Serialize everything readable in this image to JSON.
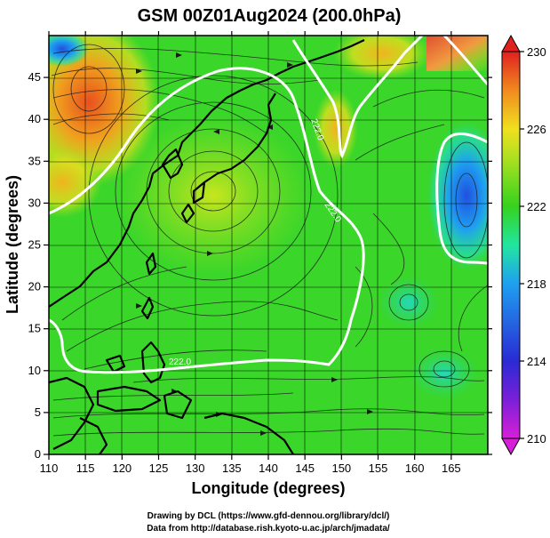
{
  "title": "GSM 00Z01Aug2024 (200.0hPa)",
  "xlabel": "Longitude (degrees)",
  "ylabel": "Latitude  (degrees)",
  "credits": [
    "Drawing by DCL (https://www.gfd-dennou.org/library/dcl/)",
    "Data from http://database.rish.kyoto-u.ac.jp/arch/jmadata/"
  ],
  "contour_labels": [
    "222.0",
    "222.0",
    "222.0"
  ],
  "chart_data": {
    "type": "heatmap",
    "xlim": [
      110,
      170
    ],
    "ylim": [
      0,
      50
    ],
    "x_ticks": [
      110,
      115,
      120,
      125,
      130,
      135,
      140,
      145,
      150,
      155,
      160,
      165
    ],
    "y_ticks": [
      0,
      5,
      10,
      15,
      20,
      25,
      30,
      35,
      40,
      45
    ],
    "colorbar": {
      "min": 210,
      "max": 230,
      "ticks": [
        210,
        214,
        218,
        222,
        226,
        230
      ],
      "colors": [
        "#d81fd8",
        "#2a2ad4",
        "#1ea0f0",
        "#22e6a0",
        "#35d21e",
        "#f0e01e",
        "#f08a1e",
        "#e02020"
      ]
    },
    "grid": true,
    "overlay": "streamlines"
  }
}
